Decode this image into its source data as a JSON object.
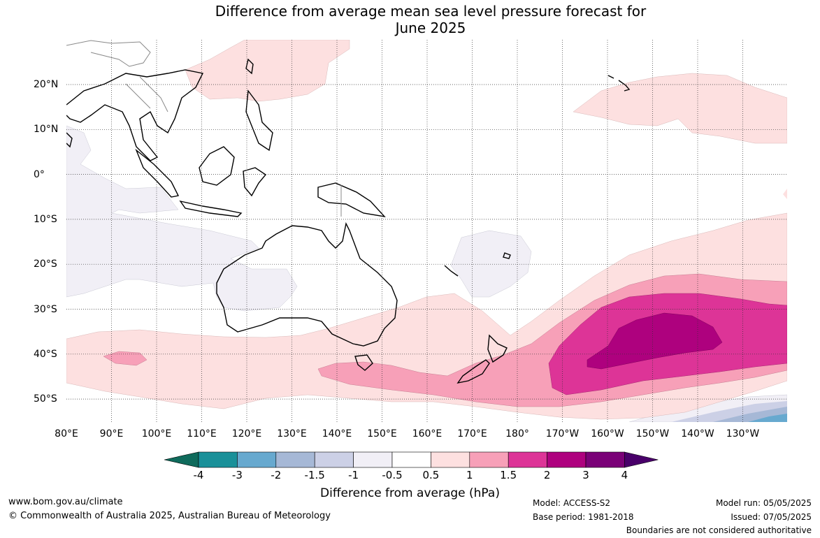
{
  "title_line1": "Difference from average mean sea level pressure forecast for",
  "title_line2": "June 2025",
  "lon_labels": [
    "80°E",
    "90°E",
    "100°E",
    "110°E",
    "120°E",
    "130°E",
    "140°E",
    "150°E",
    "160°E",
    "170°E",
    "180°",
    "170°W",
    "160°W",
    "150°W",
    "140°W",
    "130°W"
  ],
  "lat_labels": [
    "20°N",
    "10°N",
    "0°",
    "10°S",
    "20°S",
    "30°S",
    "40°S",
    "50°S"
  ],
  "colorbar": {
    "title": "Difference from average (hPa)",
    "ticks": [
      "-4",
      "-3",
      "-2",
      "-1.5",
      "-1",
      "-0.5",
      "0.5",
      "1",
      "1.5",
      "2",
      "3",
      "4"
    ],
    "colors": [
      "#0f6b5c",
      "#1a9099",
      "#67a9cf",
      "#a6b8d6",
      "#ccd0e6",
      "#f1eff6",
      "#ffffff",
      "#fde0e0",
      "#f7a0b8",
      "#dd3497",
      "#ae017e",
      "#7a0177",
      "#49006a"
    ]
  },
  "footer": {
    "url": "www.bom.gov.au/climate",
    "copyright": "© Commonwealth of Australia 2025, Australian Bureau of Meteorology",
    "model": "Model: ACCESS-S2",
    "base_period": "Base period: 1981-2018",
    "model_run": "Model run: 05/05/2025",
    "issued": "Issued: 07/05/2025",
    "disclaimer": "Boundaries are not considered authoritative"
  }
}
